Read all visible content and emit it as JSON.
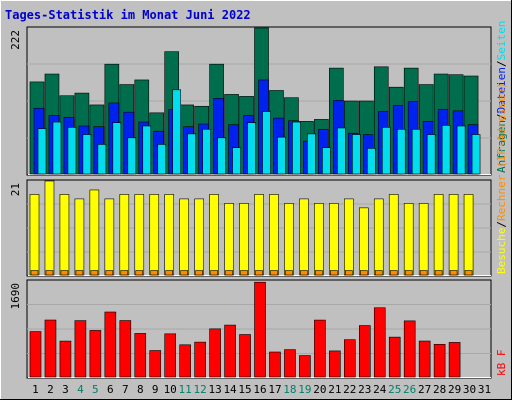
{
  "title": "Tages-Statistik im Monat Juni 2022",
  "colors": {
    "background": "#c0c0c0",
    "title": "#0000cc",
    "grid": "#ffffff",
    "hits": "#006e4c",
    "files": "#0022ee",
    "pages": "#00ddee",
    "visits": "#ffff00",
    "sites": "#ff8c00",
    "kbytes": "#ff0000",
    "weekday_label": "#000000",
    "weekend_label": "#00806a"
  },
  "chart_data": [
    {
      "type": "bar",
      "name": "top-panel",
      "ymax_label": "222",
      "legend": [
        {
          "label": "Anfragen",
          "color": "#006e4c"
        },
        {
          "label": "Dateien",
          "color": "#0022ee"
        },
        {
          "label": "Seiten",
          "color": "#00ddee"
        }
      ],
      "legend_separator": "/",
      "categories": [
        "1",
        "2",
        "3",
        "4",
        "5",
        "6",
        "7",
        "8",
        "9",
        "10",
        "11",
        "12",
        "13",
        "14",
        "15",
        "16",
        "17",
        "18",
        "19",
        "20",
        "21",
        "22",
        "23",
        "24",
        "25",
        "26",
        "27",
        "28",
        "29",
        "30",
        "31"
      ],
      "weekend_days": [
        "4",
        "5",
        "11",
        "12",
        "18",
        "19",
        "25",
        "26"
      ],
      "ylim": [
        0,
        222
      ],
      "series": [
        {
          "key": "hits",
          "values": [
            140,
            152,
            119,
            123,
            105,
            167,
            136,
            143,
            93,
            186,
            105,
            103,
            167,
            121,
            118,
            222,
            127,
            116,
            80,
            83,
            161,
            111,
            111,
            163,
            132,
            161,
            136,
            152,
            151,
            149,
            0
          ]
        },
        {
          "key": "files",
          "values": [
            100,
            89,
            86,
            73,
            72,
            108,
            94,
            79,
            65,
            98,
            72,
            76,
            115,
            75,
            89,
            143,
            85,
            81,
            50,
            68,
            112,
            62,
            60,
            95,
            104,
            110,
            80,
            98,
            96,
            75,
            0
          ]
        },
        {
          "key": "pages",
          "values": [
            69,
            79,
            71,
            60,
            45,
            78,
            55,
            73,
            45,
            128,
            61,
            68,
            55,
            40,
            78,
            95,
            56,
            79,
            61,
            40,
            70,
            60,
            39,
            71,
            68,
            68,
            60,
            74,
            73,
            60,
            0
          ]
        }
      ]
    },
    {
      "type": "bar",
      "name": "middle-panel",
      "ymax_label": "21",
      "legend": [
        {
          "label": "Besuche",
          "color": "#ffff00"
        },
        {
          "label": "Rechner (IP-Adressen)",
          "color": "#ff8c00"
        }
      ],
      "legend_separator": "/",
      "categories": [
        "1",
        "2",
        "3",
        "4",
        "5",
        "6",
        "7",
        "8",
        "9",
        "10",
        "11",
        "12",
        "13",
        "14",
        "15",
        "16",
        "17",
        "18",
        "19",
        "20",
        "21",
        "22",
        "23",
        "24",
        "25",
        "26",
        "27",
        "28",
        "29",
        "30",
        "31"
      ],
      "ylim": [
        0,
        21
      ],
      "series": [
        {
          "key": "visits",
          "values": [
            18,
            21,
            18,
            17,
            19,
            17,
            18,
            18,
            18,
            18,
            17,
            17,
            18,
            16,
            16,
            18,
            18,
            16,
            17,
            16,
            16,
            17,
            15,
            17,
            18,
            16,
            16,
            18,
            18,
            18,
            0
          ]
        },
        {
          "key": "sites",
          "values": [
            1,
            1,
            1,
            1,
            1,
            1,
            1,
            1,
            1,
            1,
            1,
            1,
            1,
            1,
            1,
            1,
            1,
            1,
            1,
            1,
            1,
            1,
            1,
            1,
            1,
            1,
            1,
            1,
            1,
            1,
            0
          ]
        }
      ]
    },
    {
      "type": "bar",
      "name": "bottom-panel",
      "ymax_label": "1690",
      "legend": [
        {
          "label": "kB F",
          "color": "#ff0000"
        }
      ],
      "legend_separator": "",
      "categories": [
        "1",
        "2",
        "3",
        "4",
        "5",
        "6",
        "7",
        "8",
        "9",
        "10",
        "11",
        "12",
        "13",
        "14",
        "15",
        "16",
        "17",
        "18",
        "19",
        "20",
        "21",
        "22",
        "23",
        "24",
        "25",
        "26",
        "27",
        "28",
        "29",
        "30",
        "31"
      ],
      "ylim": [
        0,
        1690
      ],
      "series": [
        {
          "key": "kbytes",
          "values": [
            800,
            1003,
            632,
            993,
            820,
            1144,
            994,
            767,
            466,
            760,
            567,
            614,
            848,
            914,
            748,
            1669,
            440,
            482,
            378,
            1002,
            459,
            657,
            906,
            1219,
            702,
            988,
            633,
            576,
            609,
            0,
            0
          ]
        }
      ]
    }
  ]
}
